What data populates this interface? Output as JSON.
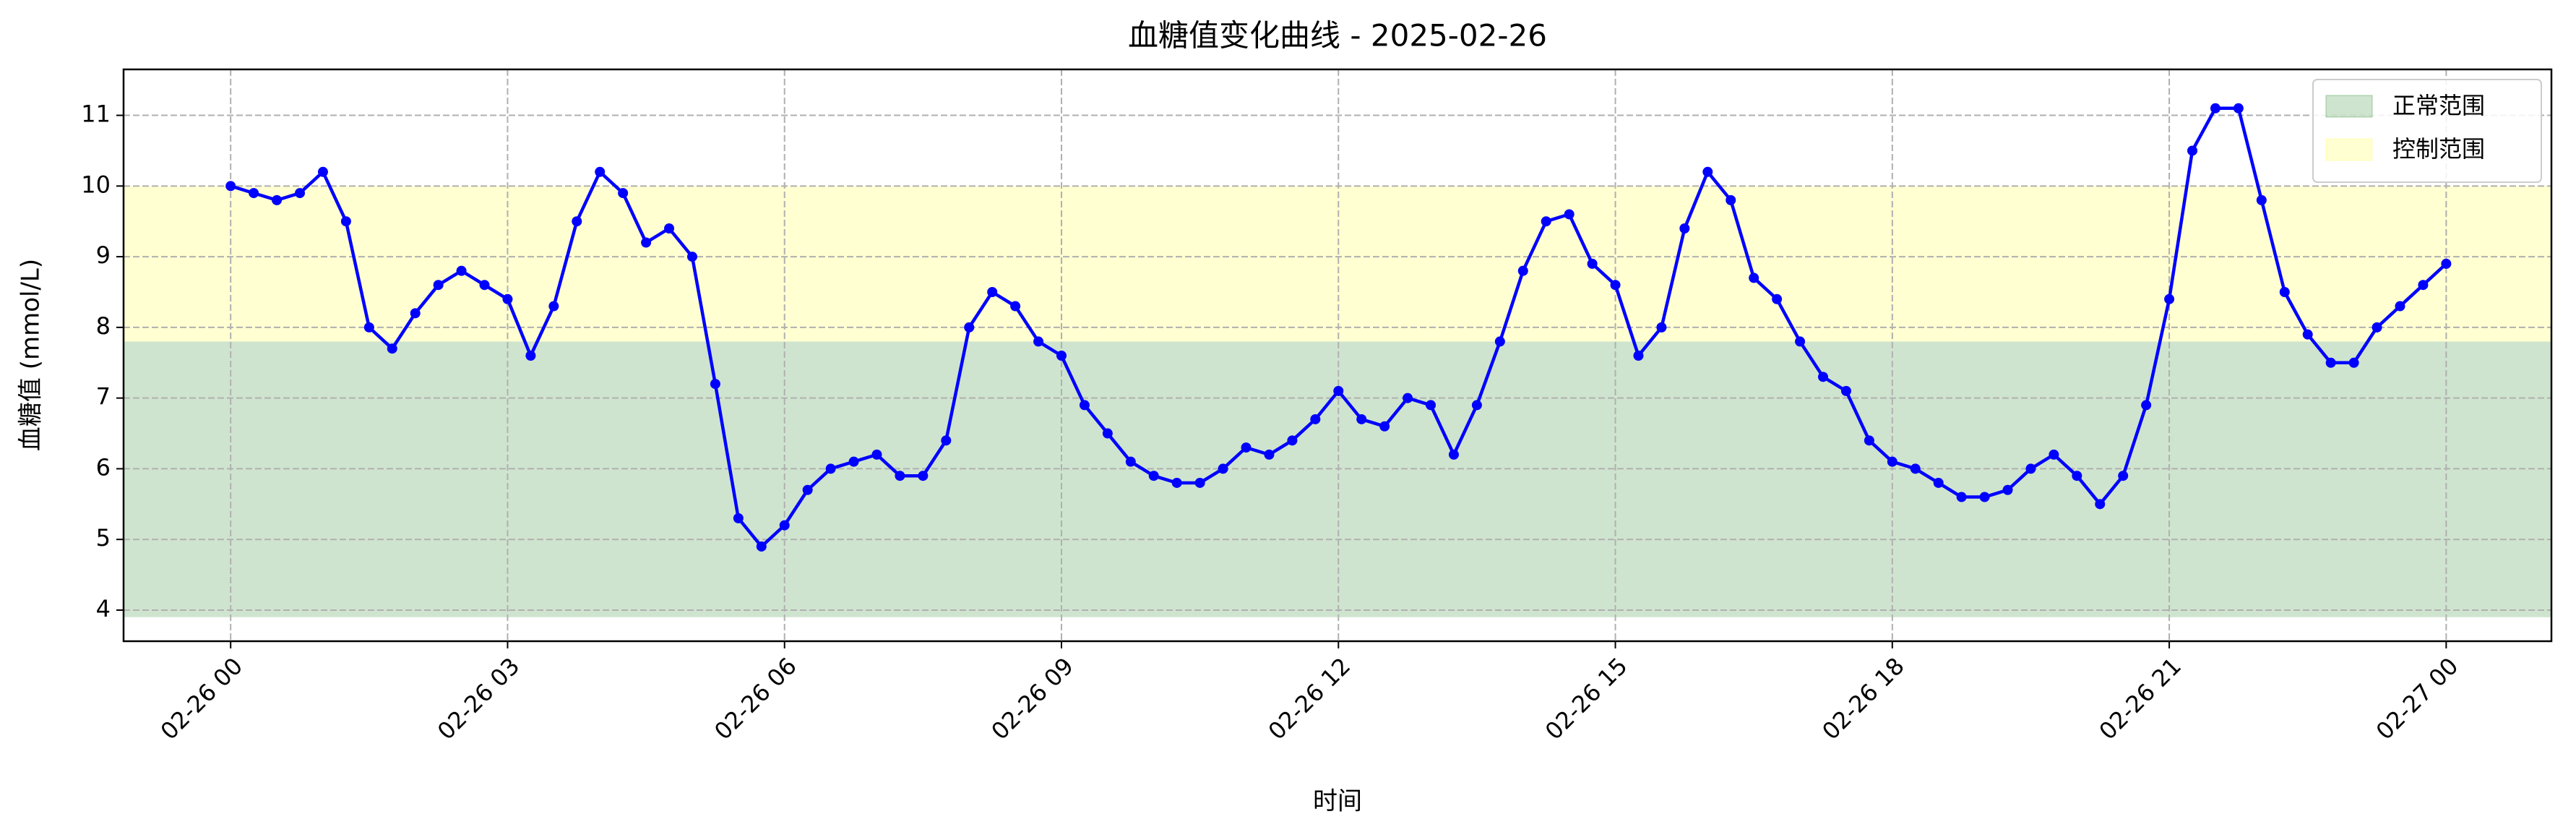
{
  "chart_data": {
    "type": "line",
    "title": "血糖值变化曲线 - 2025-02-26",
    "xlabel": "时间",
    "ylabel": "血糖值 (mmol/L)",
    "x": [
      0,
      0.25,
      0.5,
      0.75,
      1,
      1.25,
      1.5,
      1.75,
      2,
      2.25,
      2.5,
      2.75,
      3,
      3.25,
      3.5,
      3.75,
      4,
      4.25,
      4.5,
      4.75,
      5,
      5.25,
      5.5,
      5.75,
      6,
      6.25,
      6.5,
      6.75,
      7,
      7.25,
      7.5,
      7.75,
      8,
      8.25,
      8.5,
      8.75,
      9,
      9.25,
      9.5,
      9.75,
      10,
      10.25,
      10.5,
      10.75,
      11,
      11.25,
      11.5,
      11.75,
      12,
      12.25,
      12.5,
      12.75,
      13,
      13.25,
      13.5,
      13.75,
      14,
      14.25,
      14.5,
      14.75,
      15,
      15.25,
      15.5,
      15.75,
      16,
      16.25,
      16.5,
      16.75,
      17,
      17.25,
      17.5,
      17.75,
      18,
      18.25,
      18.5,
      18.75,
      19,
      19.25,
      19.5,
      19.75,
      20,
      20.25,
      20.5,
      20.75,
      21,
      21.25,
      21.5,
      21.75,
      22,
      22.25,
      22.5,
      22.75,
      23,
      23.25,
      23.5,
      23.75,
      24
    ],
    "series": [
      {
        "color": "#0000ff",
        "values": [
          10.0,
          9.9,
          9.8,
          9.9,
          10.2,
          9.5,
          8.0,
          7.7,
          8.2,
          8.6,
          8.8,
          8.6,
          8.4,
          7.6,
          8.3,
          9.5,
          10.2,
          9.9,
          9.2,
          9.4,
          9.0,
          7.2,
          5.3,
          4.9,
          5.2,
          5.7,
          6.0,
          6.1,
          6.2,
          5.9,
          5.9,
          6.4,
          8.0,
          8.5,
          8.3,
          7.8,
          7.6,
          6.9,
          6.5,
          6.1,
          5.9,
          5.8,
          5.8,
          6.0,
          6.3,
          6.2,
          6.4,
          6.7,
          7.1,
          6.7,
          6.6,
          7.0,
          6.9,
          6.2,
          6.9,
          7.8,
          8.8,
          9.5,
          9.6,
          8.9,
          8.6,
          7.6,
          8.0,
          9.4,
          10.2,
          9.8,
          8.7,
          8.4,
          7.8,
          7.3,
          7.1,
          6.4,
          6.1,
          6.0,
          5.8,
          5.6,
          5.6,
          5.7,
          6.0,
          6.2,
          5.9,
          5.5,
          5.9,
          6.9,
          8.4,
          10.5,
          11.1,
          11.1,
          9.8,
          8.5,
          7.9,
          7.5,
          7.5,
          8.0,
          8.3,
          8.6,
          8.9
        ]
      }
    ],
    "bands": [
      {
        "name": "正常范围",
        "range": [
          3.9,
          7.8
        ],
        "color": "#2e8b2e"
      },
      {
        "name": "控制范围",
        "range": [
          7.8,
          10
        ],
        "color": "#ffff66"
      }
    ],
    "xlim": [
      -1.16,
      25.14
    ],
    "ylim": [
      3.56,
      11.65
    ],
    "xticks": [
      {
        "value": 0,
        "label": "02-26 00"
      },
      {
        "value": 3,
        "label": "02-26 03"
      },
      {
        "value": 6,
        "label": "02-26 06"
      },
      {
        "value": 9,
        "label": "02-26 09"
      },
      {
        "value": 12,
        "label": "02-26 12"
      },
      {
        "value": 15,
        "label": "02-26 15"
      },
      {
        "value": 18,
        "label": "02-26 18"
      },
      {
        "value": 21,
        "label": "02-26 21"
      },
      {
        "value": 24,
        "label": "02-27 00"
      }
    ],
    "yticks": [
      4,
      5,
      6,
      7,
      8,
      9,
      10,
      11
    ],
    "grid": true,
    "legend": "upper right"
  }
}
